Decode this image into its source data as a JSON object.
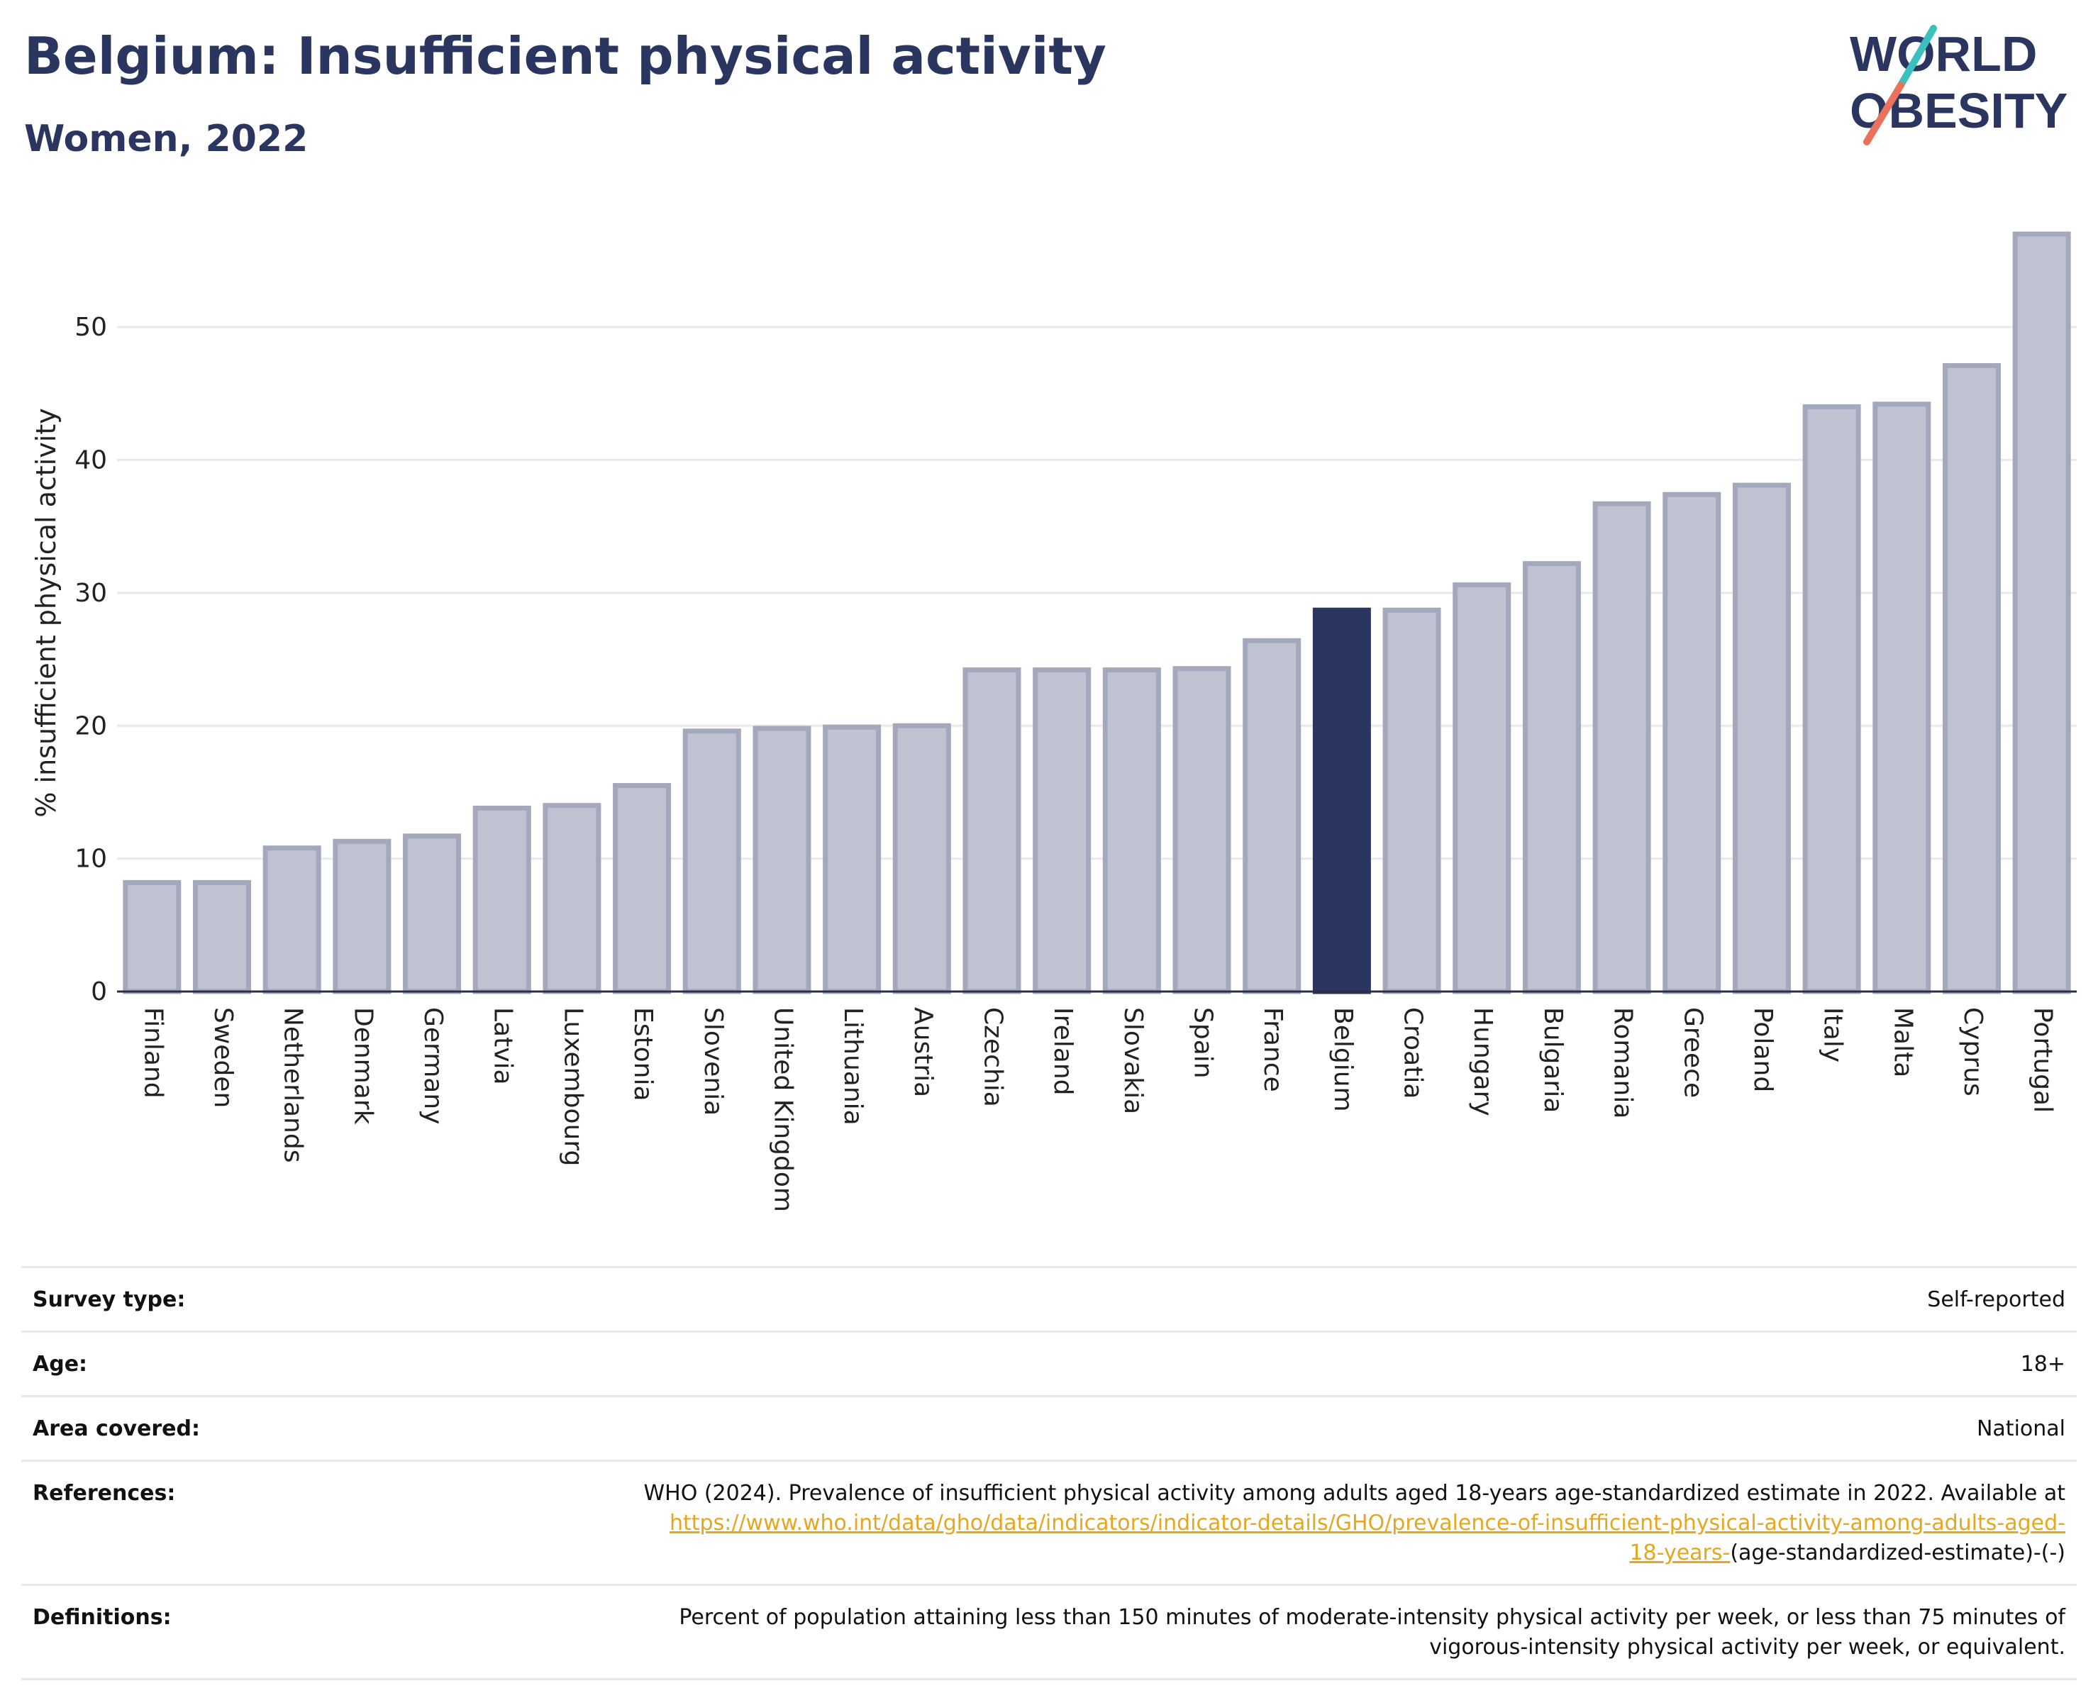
{
  "header": {
    "title": "Belgium: Insufficient physical activity",
    "subtitle": "Women, 2022"
  },
  "logo": {
    "line1": "WORLD",
    "line2": "OBESITY"
  },
  "colors": {
    "title": "#2b3660",
    "bar": "#bfc2d0",
    "bar_outline": "#a4a8bc",
    "highlight": "#2b3660",
    "link": "#e5a720"
  },
  "chart_data": {
    "type": "bar",
    "ylabel": "% insufficient physical activity",
    "xlabel": "",
    "ylim": [
      0,
      57
    ],
    "yticks": [
      0,
      10,
      20,
      30,
      40,
      50
    ],
    "grid": true,
    "highlight": "Belgium",
    "categories": [
      "Finland",
      "Sweden",
      "Netherlands",
      "Denmark",
      "Germany",
      "Latvia",
      "Luxembourg",
      "Estonia",
      "Slovenia",
      "United Kingdom",
      "Lithuania",
      "Austria",
      "Czechia",
      "Ireland",
      "Slovakia",
      "Spain",
      "France",
      "Belgium",
      "Croatia",
      "Hungary",
      "Bulgaria",
      "Romania",
      "Greece",
      "Poland",
      "Italy",
      "Malta",
      "Cyprus",
      "Portugal"
    ],
    "values": [
      8.2,
      8.2,
      10.8,
      11.3,
      11.7,
      13.8,
      14.0,
      15.5,
      19.6,
      19.8,
      19.9,
      20.0,
      24.2,
      24.2,
      24.2,
      24.3,
      26.4,
      28.7,
      28.7,
      30.6,
      32.2,
      36.7,
      37.4,
      38.1,
      44.0,
      44.2,
      47.1,
      57.0
    ]
  },
  "meta": {
    "rows": [
      {
        "label": "Survey type:",
        "value": "Self-reported"
      },
      {
        "label": "Age:",
        "value": "18+"
      },
      {
        "label": "Area covered:",
        "value": "National"
      }
    ],
    "references": {
      "label": "References:",
      "text": "WHO (2024). Prevalence of insufficient physical activity among adults aged 18-years age-standardized estimate in 2022. Available at",
      "link_line1": "https://www.who.int/data/gho/data/indicators/indicator-details/GHO/prevalence-of-insufficient-physical-activity-among-adults-aged-",
      "link_line2": "18-years-",
      "suffix": "(age-standardized-estimate)-(-)"
    },
    "definitions": {
      "label": "Definitions:",
      "line1": "Percent of population attaining less than 150 minutes of moderate-intensity physical activity per week, or less than 75 minutes of",
      "line2": "vigorous-intensity physical activity per week, or equivalent."
    }
  }
}
